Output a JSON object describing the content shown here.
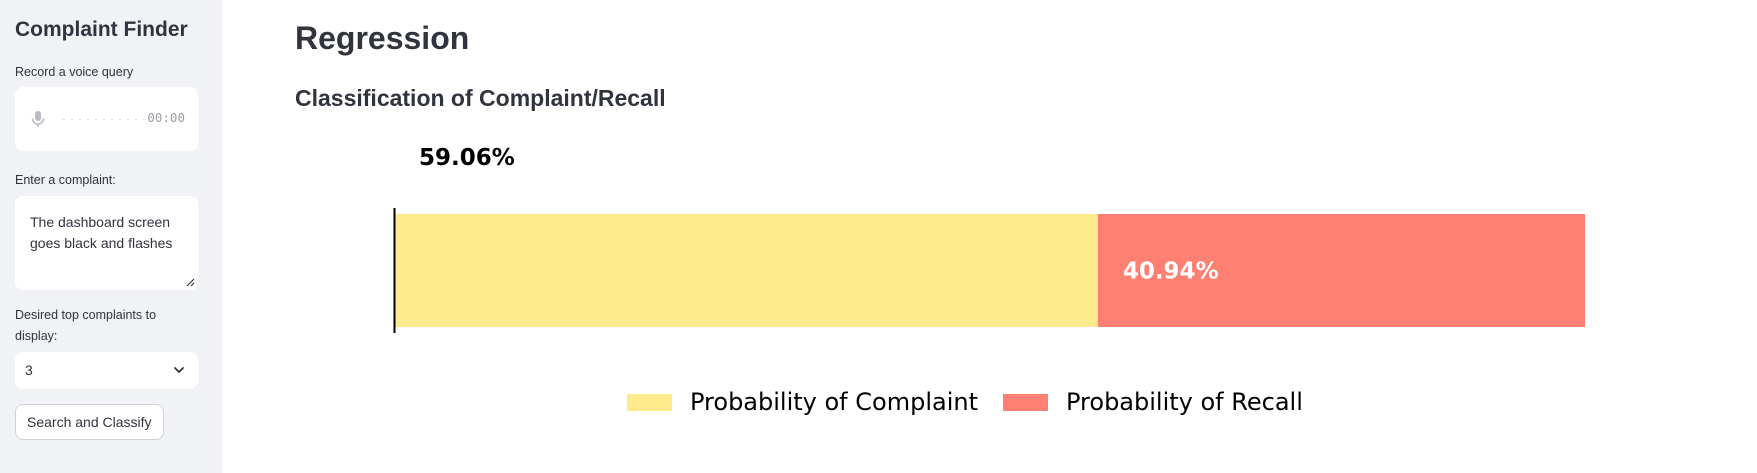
{
  "sidebar": {
    "title": "Complaint Finder",
    "voice_label": "Record a voice query",
    "recorder_time": "00:00",
    "complaint_label": "Enter a complaint:",
    "complaint_value": "The dashboard screen goes black and flashes",
    "topk_label": "Desired top complaints to display:",
    "topk_value": "3",
    "search_button": "Search and Classify"
  },
  "main": {
    "title": "Regression",
    "section_title": "Classification of Complaint/Recall"
  },
  "chart_data": {
    "type": "bar",
    "orientation": "horizontal-stacked",
    "categories": [
      ""
    ],
    "series": [
      {
        "name": "Probability of Complaint",
        "values": [
          59.06
        ],
        "label": "59.06%",
        "color": "#fdeb8e"
      },
      {
        "name": "Probability of Recall",
        "values": [
          40.94
        ],
        "label": "40.94%",
        "color": "#fd8072"
      }
    ],
    "xlim": [
      0,
      100
    ],
    "grid": false,
    "legend": "bottom-center"
  },
  "colors": {
    "sidebar_bg": "#f0f2f6",
    "text": "#31333f"
  }
}
